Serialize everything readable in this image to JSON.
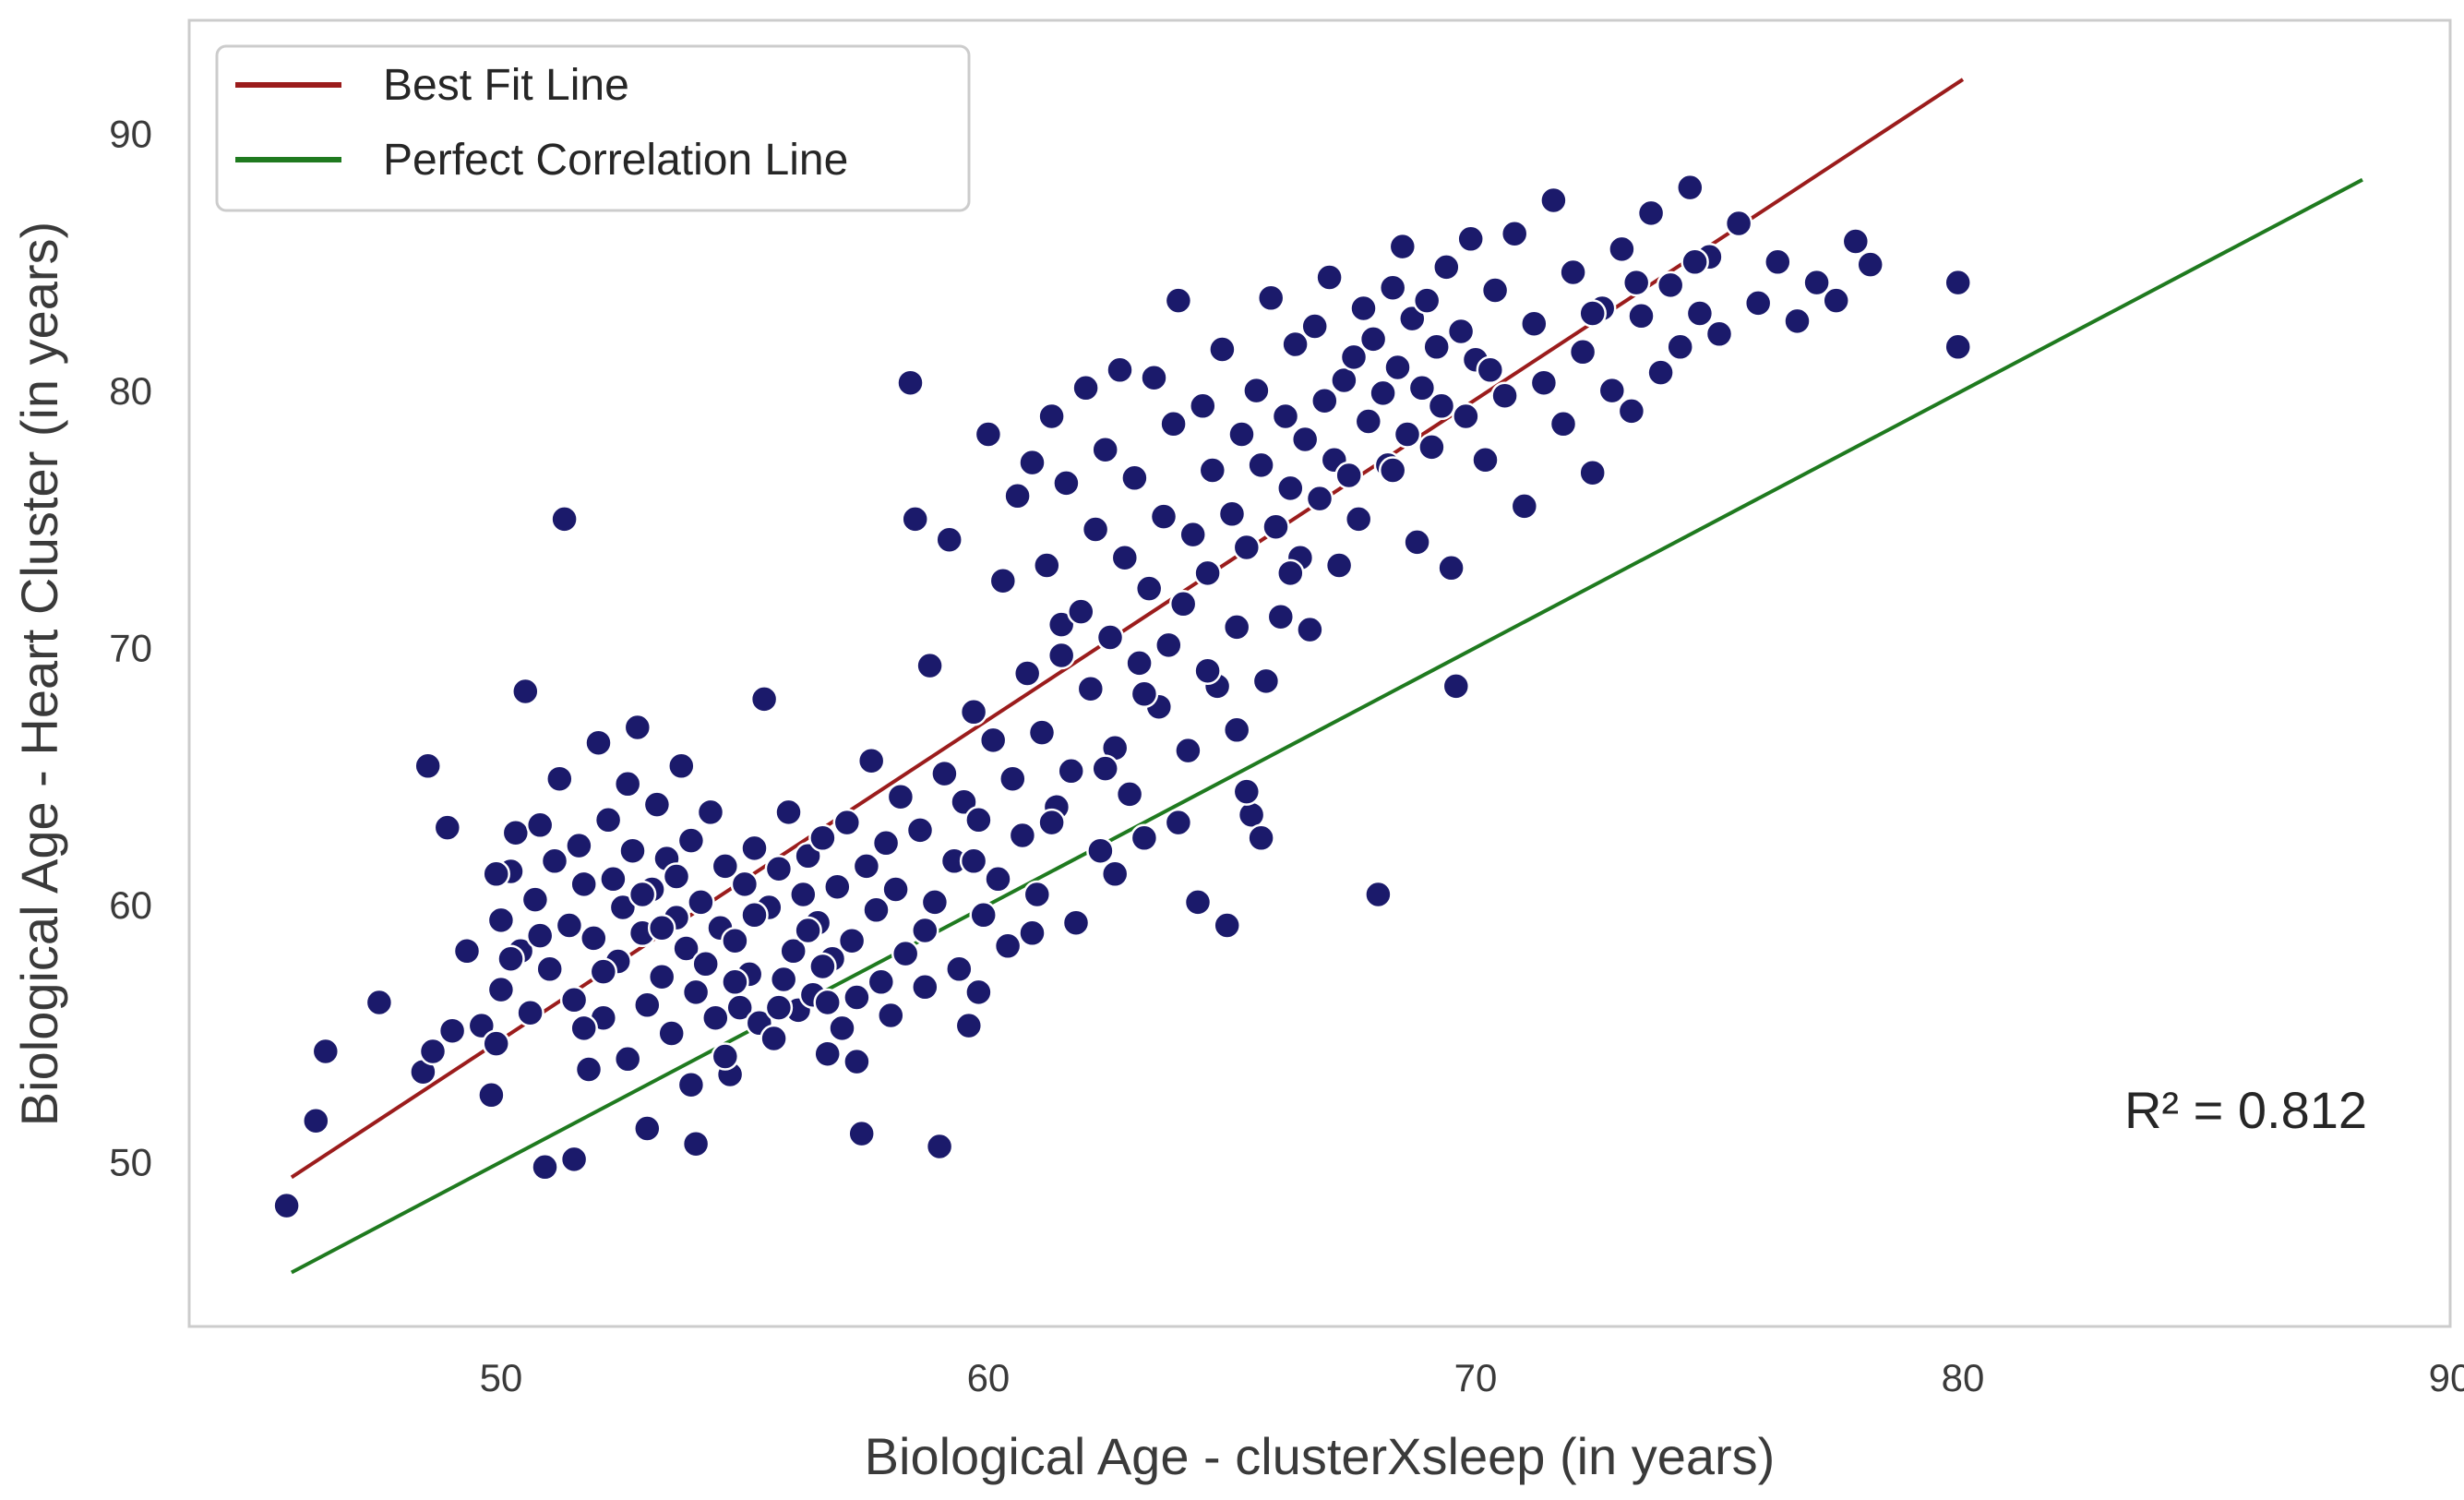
{
  "chart_data": {
    "type": "scatter",
    "title": "",
    "xlabel": "Biological Age - clusterXsleep (in years)",
    "ylabel": "Biological Age - Heart Cluster (in years)",
    "xlim": [
      43.6,
      90.0
    ],
    "ylim": [
      43.6,
      94.4
    ],
    "xticks": [
      50,
      60,
      70,
      80,
      90
    ],
    "yticks": [
      50,
      60,
      70,
      80,
      90
    ],
    "grid": false,
    "annotation": "R² = 0.812",
    "legend": {
      "position": "top-left",
      "entries": [
        "Best Fit Line",
        "Perfect Correlation Line"
      ]
    },
    "lines": [
      {
        "name": "Best Fit Line",
        "color": "#9b1c1c",
        "x": [
          45.7,
          80.0
        ],
        "y": [
          49.4,
          92.1
        ]
      },
      {
        "name": "Perfect Correlation Line",
        "color": "#1f7a1f",
        "x": [
          45.7,
          88.2
        ],
        "y": [
          45.7,
          88.2
        ]
      }
    ],
    "series": [
      {
        "name": "Samples",
        "color": "#1b1a6b",
        "edge_color": "#ffffff",
        "points": [
          [
            45.6,
            48.3
          ],
          [
            46.2,
            51.6
          ],
          [
            46.4,
            54.3
          ],
          [
            47.5,
            56.2
          ],
          [
            48.4,
            53.5
          ],
          [
            48.5,
            65.4
          ],
          [
            48.6,
            54.3
          ],
          [
            48.9,
            63.0
          ],
          [
            49.0,
            55.1
          ],
          [
            49.3,
            58.2
          ],
          [
            49.6,
            55.3
          ],
          [
            49.8,
            52.6
          ],
          [
            49.9,
            54.6
          ],
          [
            50.0,
            56.7
          ],
          [
            50.0,
            59.4
          ],
          [
            50.2,
            61.3
          ],
          [
            50.3,
            62.8
          ],
          [
            50.4,
            58.2
          ],
          [
            50.5,
            68.3
          ],
          [
            50.6,
            55.8
          ],
          [
            50.7,
            60.2
          ],
          [
            50.8,
            63.1
          ],
          [
            50.9,
            49.8
          ],
          [
            51.0,
            57.5
          ],
          [
            51.1,
            61.7
          ],
          [
            51.2,
            64.9
          ],
          [
            51.3,
            75.0
          ],
          [
            51.4,
            59.2
          ],
          [
            51.5,
            56.3
          ],
          [
            51.6,
            62.3
          ],
          [
            51.7,
            60.8
          ],
          [
            51.8,
            53.6
          ],
          [
            51.9,
            58.7
          ],
          [
            52.0,
            66.3
          ],
          [
            52.1,
            55.6
          ],
          [
            52.2,
            63.3
          ],
          [
            52.3,
            61.0
          ],
          [
            52.4,
            57.8
          ],
          [
            52.5,
            59.9
          ],
          [
            52.6,
            64.7
          ],
          [
            52.6,
            54.0
          ],
          [
            52.7,
            62.1
          ],
          [
            52.8,
            66.9
          ],
          [
            52.9,
            58.9
          ],
          [
            53.0,
            56.1
          ],
          [
            53.0,
            51.3
          ],
          [
            53.1,
            60.6
          ],
          [
            53.2,
            63.9
          ],
          [
            53.3,
            57.2
          ],
          [
            53.4,
            61.8
          ],
          [
            53.5,
            55.0
          ],
          [
            53.6,
            59.5
          ],
          [
            53.7,
            65.4
          ],
          [
            53.8,
            58.3
          ],
          [
            53.9,
            62.5
          ],
          [
            54.0,
            56.6
          ],
          [
            54.0,
            50.7
          ],
          [
            54.1,
            60.1
          ],
          [
            54.2,
            57.7
          ],
          [
            54.3,
            63.6
          ],
          [
            54.4,
            55.6
          ],
          [
            54.5,
            59.1
          ],
          [
            54.6,
            61.5
          ],
          [
            54.7,
            53.4
          ],
          [
            54.8,
            58.6
          ],
          [
            54.9,
            56.0
          ],
          [
            55.0,
            60.8
          ],
          [
            55.1,
            57.3
          ],
          [
            55.2,
            62.2
          ],
          [
            55.3,
            55.4
          ],
          [
            55.4,
            68.0
          ],
          [
            55.5,
            59.9
          ],
          [
            55.6,
            54.8
          ],
          [
            55.7,
            61.4
          ],
          [
            55.8,
            57.1
          ],
          [
            55.9,
            63.6
          ],
          [
            56.0,
            58.2
          ],
          [
            56.1,
            55.9
          ],
          [
            56.2,
            60.4
          ],
          [
            56.3,
            61.9
          ],
          [
            56.4,
            56.5
          ],
          [
            56.5,
            59.3
          ],
          [
            56.6,
            62.6
          ],
          [
            56.7,
            54.2
          ],
          [
            56.8,
            57.9
          ],
          [
            56.9,
            60.7
          ],
          [
            57.0,
            55.2
          ],
          [
            57.1,
            63.2
          ],
          [
            57.2,
            58.6
          ],
          [
            57.3,
            56.4
          ],
          [
            57.4,
            51.1
          ],
          [
            57.5,
            61.5
          ],
          [
            57.6,
            65.6
          ],
          [
            57.7,
            59.8
          ],
          [
            57.8,
            57.0
          ],
          [
            57.9,
            62.4
          ],
          [
            58.0,
            55.7
          ],
          [
            58.1,
            60.6
          ],
          [
            58.2,
            64.2
          ],
          [
            58.3,
            58.1
          ],
          [
            58.4,
            80.3
          ],
          [
            58.5,
            75.0
          ],
          [
            58.6,
            62.9
          ],
          [
            58.7,
            56.8
          ],
          [
            58.8,
            69.3
          ],
          [
            58.9,
            60.1
          ],
          [
            59.0,
            50.6
          ],
          [
            59.1,
            65.1
          ],
          [
            59.2,
            74.2
          ],
          [
            59.3,
            61.7
          ],
          [
            59.4,
            57.5
          ],
          [
            59.5,
            64.0
          ],
          [
            59.6,
            55.3
          ],
          [
            59.7,
            67.5
          ],
          [
            59.8,
            63.3
          ],
          [
            59.9,
            59.6
          ],
          [
            60.0,
            78.3
          ],
          [
            60.1,
            66.4
          ],
          [
            60.2,
            61.0
          ],
          [
            60.3,
            72.6
          ],
          [
            60.4,
            58.4
          ],
          [
            60.5,
            64.9
          ],
          [
            60.6,
            75.9
          ],
          [
            60.7,
            62.7
          ],
          [
            60.8,
            69.0
          ],
          [
            60.9,
            77.2
          ],
          [
            61.0,
            60.4
          ],
          [
            61.1,
            66.7
          ],
          [
            61.2,
            73.2
          ],
          [
            61.3,
            79.0
          ],
          [
            61.4,
            63.8
          ],
          [
            61.5,
            70.9
          ],
          [
            61.6,
            76.4
          ],
          [
            61.7,
            65.2
          ],
          [
            61.8,
            59.3
          ],
          [
            61.9,
            71.4
          ],
          [
            62.0,
            80.1
          ],
          [
            62.1,
            68.4
          ],
          [
            62.2,
            74.6
          ],
          [
            62.3,
            62.1
          ],
          [
            62.4,
            77.7
          ],
          [
            62.5,
            70.4
          ],
          [
            62.6,
            66.1
          ],
          [
            62.7,
            80.8
          ],
          [
            62.8,
            73.5
          ],
          [
            62.9,
            64.3
          ],
          [
            63.0,
            76.6
          ],
          [
            63.1,
            69.4
          ],
          [
            63.2,
            62.6
          ],
          [
            63.3,
            72.3
          ],
          [
            63.4,
            80.5
          ],
          [
            63.5,
            67.7
          ],
          [
            63.6,
            75.1
          ],
          [
            63.7,
            70.1
          ],
          [
            63.8,
            78.7
          ],
          [
            63.9,
            83.5
          ],
          [
            64.0,
            71.7
          ],
          [
            64.1,
            66.0
          ],
          [
            64.2,
            74.4
          ],
          [
            64.3,
            60.1
          ],
          [
            64.4,
            79.4
          ],
          [
            64.5,
            72.9
          ],
          [
            64.6,
            76.9
          ],
          [
            64.7,
            68.5
          ],
          [
            64.8,
            81.6
          ],
          [
            64.9,
            59.2
          ],
          [
            65.0,
            75.2
          ],
          [
            65.1,
            70.8
          ],
          [
            65.2,
            78.3
          ],
          [
            65.3,
            73.9
          ],
          [
            65.4,
            63.5
          ],
          [
            65.5,
            80.0
          ],
          [
            65.6,
            77.1
          ],
          [
            65.7,
            68.7
          ],
          [
            65.8,
            83.6
          ],
          [
            65.9,
            74.7
          ],
          [
            66.0,
            71.2
          ],
          [
            66.1,
            79.0
          ],
          [
            66.2,
            76.2
          ],
          [
            66.3,
            81.8
          ],
          [
            66.4,
            73.5
          ],
          [
            66.5,
            78.1
          ],
          [
            66.6,
            70.7
          ],
          [
            66.7,
            82.5
          ],
          [
            66.8,
            75.8
          ],
          [
            66.9,
            79.6
          ],
          [
            67.0,
            84.4
          ],
          [
            67.1,
            77.3
          ],
          [
            67.2,
            73.2
          ],
          [
            67.3,
            80.4
          ],
          [
            67.4,
            76.7
          ],
          [
            67.5,
            81.3
          ],
          [
            67.6,
            75.0
          ],
          [
            67.7,
            83.2
          ],
          [
            67.8,
            78.8
          ],
          [
            67.9,
            82.0
          ],
          [
            68.0,
            60.4
          ],
          [
            68.1,
            79.9
          ],
          [
            68.2,
            77.1
          ],
          [
            68.3,
            84.0
          ],
          [
            68.4,
            80.9
          ],
          [
            68.5,
            85.6
          ],
          [
            68.6,
            78.3
          ],
          [
            68.7,
            82.8
          ],
          [
            68.8,
            74.1
          ],
          [
            68.9,
            80.1
          ],
          [
            69.0,
            83.5
          ],
          [
            69.1,
            77.8
          ],
          [
            69.2,
            81.7
          ],
          [
            69.3,
            79.4
          ],
          [
            69.4,
            84.8
          ],
          [
            69.5,
            73.1
          ],
          [
            69.6,
            68.5
          ],
          [
            69.7,
            82.3
          ],
          [
            69.8,
            79.0
          ],
          [
            69.9,
            85.9
          ],
          [
            70.0,
            81.2
          ],
          [
            70.2,
            77.3
          ],
          [
            70.4,
            83.9
          ],
          [
            70.6,
            79.8
          ],
          [
            70.8,
            86.1
          ],
          [
            71.0,
            75.5
          ],
          [
            71.2,
            82.6
          ],
          [
            71.4,
            80.3
          ],
          [
            71.6,
            87.4
          ],
          [
            71.8,
            78.7
          ],
          [
            72.0,
            84.6
          ],
          [
            72.2,
            81.5
          ],
          [
            72.4,
            76.8
          ],
          [
            72.6,
            83.2
          ],
          [
            72.8,
            80.0
          ],
          [
            73.0,
            85.5
          ],
          [
            73.2,
            79.2
          ],
          [
            73.4,
            82.9
          ],
          [
            73.6,
            86.9
          ],
          [
            73.8,
            80.7
          ],
          [
            74.0,
            84.1
          ],
          [
            74.2,
            81.7
          ],
          [
            74.4,
            87.9
          ],
          [
            74.6,
            83.0
          ],
          [
            74.8,
            85.2
          ],
          [
            75.0,
            82.2
          ],
          [
            75.4,
            86.5
          ],
          [
            75.8,
            83.4
          ],
          [
            76.2,
            85.0
          ],
          [
            76.6,
            82.7
          ],
          [
            77.0,
            84.2
          ],
          [
            77.4,
            83.5
          ],
          [
            77.8,
            85.8
          ],
          [
            78.1,
            84.9
          ],
          [
            79.9,
            84.2
          ],
          [
            79.9,
            81.7
          ],
          [
            51.5,
            50.1
          ],
          [
            53.9,
            53.0
          ],
          [
            54.6,
            54.1
          ],
          [
            56.7,
            56.2
          ],
          [
            57.3,
            53.9
          ],
          [
            59.8,
            56.6
          ],
          [
            60.9,
            58.9
          ],
          [
            62.6,
            61.2
          ],
          [
            63.9,
            63.2
          ],
          [
            65.3,
            64.4
          ],
          [
            65.6,
            62.6
          ],
          [
            50.2,
            57.9
          ],
          [
            51.7,
            55.2
          ],
          [
            52.9,
            60.4
          ],
          [
            53.3,
            59.1
          ],
          [
            54.8,
            57.0
          ],
          [
            55.7,
            56.0
          ],
          [
            56.3,
            59.0
          ],
          [
            49.9,
            61.2
          ],
          [
            50.8,
            58.8
          ],
          [
            52.1,
            57.4
          ],
          [
            53.6,
            61.1
          ],
          [
            55.2,
            59.6
          ],
          [
            56.6,
            57.6
          ],
          [
            58.7,
            59.0
          ],
          [
            59.7,
            61.7
          ],
          [
            61.3,
            63.2
          ],
          [
            62.4,
            65.3
          ],
          [
            64.5,
            69.1
          ],
          [
            66.2,
            72.9
          ],
          [
            68.3,
            76.9
          ],
          [
            70.3,
            80.8
          ],
          [
            72.4,
            83.0
          ],
          [
            73.3,
            84.2
          ],
          [
            74.5,
            85.0
          ],
          [
            65.1,
            66.8
          ],
          [
            63.2,
            68.2
          ],
          [
            61.5,
            69.7
          ]
        ]
      }
    ]
  }
}
